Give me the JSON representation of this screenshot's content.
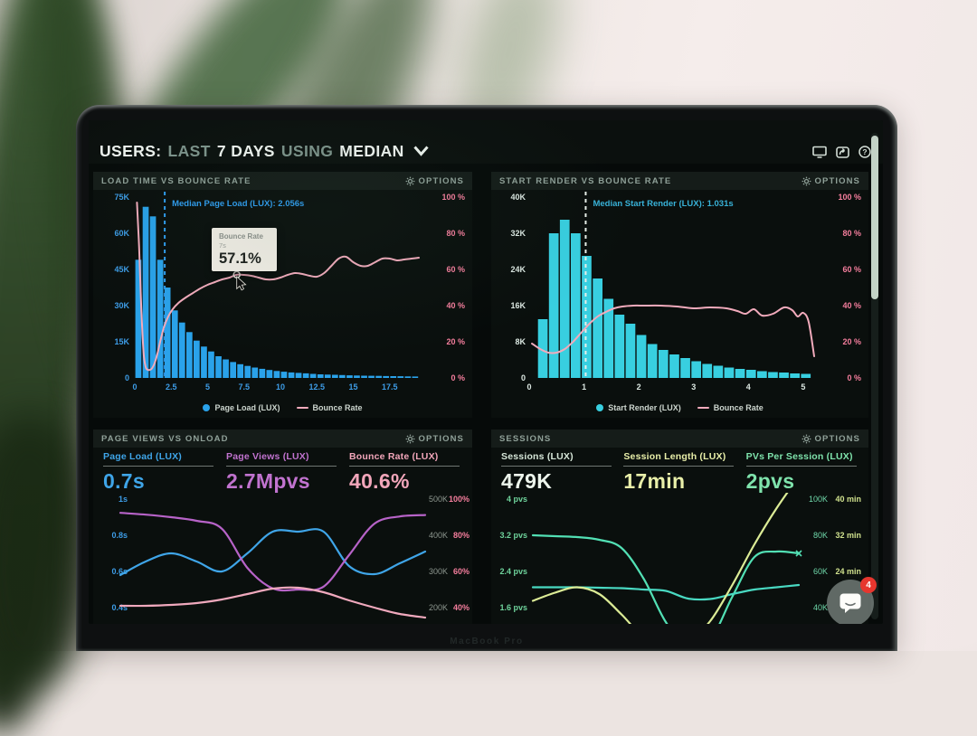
{
  "header": {
    "segments": [
      {
        "text": "USERS:",
        "emphasis": true
      },
      {
        "text": "LAST",
        "emphasis": false
      },
      {
        "text": "7 DAYS",
        "emphasis": true
      },
      {
        "text": "USING",
        "emphasis": false
      },
      {
        "text": "MEDIAN",
        "emphasis": true
      }
    ],
    "icons": [
      "display-icon",
      "share-icon",
      "help-icon"
    ]
  },
  "panels": {
    "p1": {
      "title": "LOAD TIME VS BOUNCE RATE",
      "options": "OPTIONS"
    },
    "p2": {
      "title": "START RENDER VS BOUNCE RATE",
      "options": "OPTIONS"
    },
    "p3": {
      "title": "PAGE VIEWS VS ONLOAD",
      "options": "OPTIONS"
    },
    "p4": {
      "title": "SESSIONS",
      "options": "OPTIONS"
    }
  },
  "tooltip": {
    "title": "Bounce Rate",
    "subtitle": "7s",
    "value": "57.1%"
  },
  "chat_widget": {
    "badge": "4"
  },
  "laptop_label": "MacBook Pro",
  "colors": {
    "screen_bg": "#060a09",
    "panel_header_bg": "#151c19",
    "blue": "#2aa2ea",
    "cyan": "#38cfe0",
    "pink_line": "#f2abbc",
    "pink_axis": "#f57e9d",
    "purple": "#b763c8",
    "teal": "#52e0b4",
    "yellow_green": "#dcec96",
    "mint": "#7fe3ac",
    "badge_red": "#e6362e",
    "scroll_thumb": "#c3d2c6"
  },
  "chart_data": [
    {
      "id": "c1",
      "type": "bar+line",
      "title": "LOAD TIME VS BOUNCE RATE",
      "x": {
        "unit": "seconds",
        "ticks": [
          0,
          2.5,
          5,
          7.5,
          10,
          12.5,
          15,
          17.5
        ],
        "labels": [
          "0",
          "2.5",
          "5",
          "7.5",
          "10",
          "12.5",
          "15",
          "17.5"
        ],
        "max": 19.75,
        "label_color": "#3d9ce6"
      },
      "y_left": {
        "label_color": "#3d9ce6",
        "ticks": [
          "75K",
          "60K",
          "45K",
          "30K",
          "15K",
          "0"
        ],
        "max": 75000
      },
      "y_right": {
        "label_color": "#f57e9d",
        "ticks": [
          "100 %",
          "80 %",
          "60 %",
          "40 %",
          "20 %",
          "0 %"
        ],
        "max": 100
      },
      "bars": {
        "name": "Page Load (LUX)",
        "color": "#2aa2ea",
        "bucket_start": 0,
        "bucket_width": 0.5,
        "values_thousands": [
          49,
          71,
          67,
          49,
          37.5,
          28,
          23,
          19,
          15.5,
          13,
          11,
          9,
          7.7,
          6.6,
          5.7,
          5,
          4.3,
          3.8,
          3.3,
          2.9,
          2.6,
          2.3,
          2.1,
          1.9,
          1.7,
          1.5,
          1.4,
          1.3,
          1.2,
          1.1,
          1,
          0.95,
          0.9,
          0.85,
          0.8,
          0.75,
          0.7,
          0.65,
          0.6
        ]
      },
      "line": {
        "name": "Bounce Rate",
        "color": "#f2abbc",
        "points_pct": [
          [
            0.15,
            97
          ],
          [
            0.3,
            72
          ],
          [
            0.45,
            38
          ],
          [
            0.6,
            14
          ],
          [
            0.75,
            6
          ],
          [
            0.9,
            4.5
          ],
          [
            1.05,
            4.5
          ],
          [
            1.2,
            5.5
          ],
          [
            1.4,
            9
          ],
          [
            1.6,
            15
          ],
          [
            1.8,
            22
          ],
          [
            2,
            28
          ],
          [
            2.3,
            34
          ],
          [
            2.6,
            38
          ],
          [
            3,
            41.5
          ],
          [
            3.5,
            44.5
          ],
          [
            4,
            47
          ],
          [
            4.5,
            49.5
          ],
          [
            5,
            51.5
          ],
          [
            5.5,
            53
          ],
          [
            6,
            54.5
          ],
          [
            6.5,
            55.5
          ],
          [
            7,
            57.1
          ],
          [
            7.5,
            57
          ],
          [
            8,
            56.5
          ],
          [
            8.5,
            55.5
          ],
          [
            9,
            54.5
          ],
          [
            9.5,
            54.5
          ],
          [
            10,
            55.5
          ],
          [
            10.5,
            57
          ],
          [
            11,
            58
          ],
          [
            11.5,
            57.5
          ],
          [
            12,
            56.5
          ],
          [
            12.5,
            56
          ],
          [
            13,
            58
          ],
          [
            13.5,
            62
          ],
          [
            14,
            66
          ],
          [
            14.5,
            67
          ],
          [
            15,
            64
          ],
          [
            15.5,
            62
          ],
          [
            16,
            62
          ],
          [
            16.5,
            64
          ],
          [
            17,
            66
          ],
          [
            17.5,
            66
          ],
          [
            18,
            65
          ],
          [
            18.5,
            65.5
          ],
          [
            19,
            66
          ],
          [
            19.5,
            66.5
          ]
        ]
      },
      "median": {
        "label": "Median Page Load (LUX): 2.056s",
        "value": 2.056,
        "line_color": "#2f9df0",
        "text_color": "#2f9df0"
      },
      "tooltip": {
        "title": "Bounce Rate",
        "subtitle": "7s",
        "value": "57.1%",
        "anchor_x": 7,
        "anchor_pct": 57.1
      },
      "legend": [
        {
          "label": "Page Load (LUX)",
          "swatch": "dot",
          "color": "#2aa2ea"
        },
        {
          "label": "Bounce Rate",
          "swatch": "line",
          "color": "#f2abbc"
        }
      ]
    },
    {
      "id": "c2",
      "type": "bar+line",
      "title": "START RENDER VS BOUNCE RATE",
      "x": {
        "unit": "seconds",
        "ticks": [
          0,
          1,
          2,
          3,
          4,
          5
        ],
        "labels": [
          "0",
          "1",
          "2",
          "3",
          "4",
          "5"
        ],
        "max": 5.25,
        "label_color": "#dce8e2"
      },
      "y_left": {
        "label_color": "#dce8e2",
        "ticks": [
          "40K",
          "32K",
          "24K",
          "16K",
          "8K",
          "0"
        ],
        "max": 40000
      },
      "y_right": {
        "label_color": "#f57e9d",
        "ticks": [
          "100 %",
          "80 %",
          "60 %",
          "40 %",
          "20 %",
          "0 %"
        ],
        "max": 100
      },
      "bars": {
        "name": "Start Render (LUX)",
        "color": "#38cfe0",
        "bucket_start": 0.15,
        "bucket_width": 0.2,
        "values_thousands": [
          13,
          32,
          35,
          32,
          27,
          22,
          17.5,
          14,
          12,
          9.5,
          7.5,
          6.2,
          5.2,
          4.4,
          3.7,
          3.1,
          2.7,
          2.3,
          2,
          1.8,
          1.5,
          1.3,
          1.2,
          1,
          0.9
        ]
      },
      "line": {
        "name": "Bounce Rate",
        "color": "#f2abbc",
        "points_pct": [
          [
            0.05,
            19
          ],
          [
            0.2,
            16
          ],
          [
            0.35,
            14
          ],
          [
            0.5,
            14
          ],
          [
            0.65,
            16
          ],
          [
            0.8,
            20
          ],
          [
            0.95,
            25
          ],
          [
            1.1,
            30
          ],
          [
            1.25,
            34
          ],
          [
            1.4,
            36.5
          ],
          [
            1.55,
            38.5
          ],
          [
            1.7,
            39.5
          ],
          [
            1.9,
            40
          ],
          [
            2.1,
            40
          ],
          [
            2.4,
            40
          ],
          [
            2.7,
            39.5
          ],
          [
            3,
            38.5
          ],
          [
            3.3,
            39
          ],
          [
            3.6,
            38.5
          ],
          [
            3.8,
            37
          ],
          [
            3.95,
            35.5
          ],
          [
            4.1,
            38
          ],
          [
            4.25,
            34.5
          ],
          [
            4.45,
            35.5
          ],
          [
            4.65,
            39
          ],
          [
            4.8,
            37.5
          ],
          [
            4.9,
            34
          ],
          [
            5,
            36
          ],
          [
            5.1,
            31
          ],
          [
            5.2,
            12
          ]
        ]
      },
      "median": {
        "label": "Median Start Render (LUX): 1.031s",
        "value": 1.031,
        "line_color": "#e8efe9",
        "text_color": "#38b2d8"
      },
      "legend": [
        {
          "label": "Start Render (LUX)",
          "swatch": "dot",
          "color": "#38cfe0"
        },
        {
          "label": "Bounce Rate",
          "swatch": "line",
          "color": "#f2abbc"
        }
      ]
    },
    {
      "id": "c3",
      "type": "line",
      "title": "PAGE VIEWS VS ONLOAD",
      "metrics": [
        {
          "label": "Page Load (LUX)",
          "value": "0.7s",
          "color": "#3fa5e8"
        },
        {
          "label": "Page Views (LUX)",
          "value": "2.7Mpvs",
          "color": "#c173cf"
        },
        {
          "label": "Bounce Rate (LUX)",
          "value": "40.6%",
          "color": "#f2a6ba"
        }
      ],
      "axes": {
        "seconds": {
          "top": 1.0,
          "step": 0.2
        },
        "views": {
          "top": 500,
          "step": 100
        },
        "pct": {
          "top": 100,
          "step": 20
        }
      },
      "y_left": {
        "label_color": "#3d9ce6",
        "ticks": [
          "1s",
          "0.8s",
          "0.6s",
          "0.4s"
        ]
      },
      "y_right_col1": {
        "label_color": "#8d978f",
        "ticks": [
          "500K",
          "400K",
          "300K",
          "200K"
        ]
      },
      "y_right_col2": {
        "label_color": "#f57e9d",
        "ticks": [
          "100%",
          "80%",
          "60%",
          "40%"
        ]
      },
      "series": [
        {
          "name": "Page Load",
          "axis": "seconds",
          "color": "#3fa5e8",
          "values": [
            0.58,
            0.655,
            0.7,
            0.655,
            0.6,
            0.7,
            0.82,
            0.82,
            0.82,
            0.63,
            0.585,
            0.645,
            0.71
          ]
        },
        {
          "name": "Page Views",
          "axis": "views",
          "color": "#b763c8",
          "values": [
            462,
            457,
            450,
            440,
            418,
            310,
            253,
            250,
            258,
            345,
            432,
            452,
            456
          ]
        },
        {
          "name": "Bounce Rate",
          "axis": "pct",
          "color": "#f0a9bd",
          "values": [
            41,
            41,
            41.5,
            42.5,
            44.5,
            47.5,
            50.5,
            51,
            48.5,
            44,
            40,
            36.5,
            34.5
          ]
        }
      ]
    },
    {
      "id": "c4",
      "type": "line",
      "title": "SESSIONS",
      "metrics": [
        {
          "label": "Sessions (LUX)",
          "value": "479K",
          "color": "#d6e6d8",
          "value_color": "#edf5ec"
        },
        {
          "label": "Session Length (LUX)",
          "value": "17min",
          "color": "#e9efa9"
        },
        {
          "label": "PVs Per Session (LUX)",
          "value": "2pvs",
          "color": "#7fe3ac"
        }
      ],
      "axes": {
        "pvs": {
          "top": 4,
          "step": 0.8
        },
        "sessions": {
          "top": 100,
          "step": 20
        },
        "minutes": {
          "top": 40,
          "step": 8
        }
      },
      "y_left": {
        "label_color": "#6fd49c",
        "ticks": [
          "4 pvs",
          "3.2 pvs",
          "2.4 pvs",
          "1.6 pvs"
        ]
      },
      "y_right_col1": {
        "label_color": "#6fd8aa",
        "ticks": [
          "100K",
          "80K",
          "60K",
          "40K"
        ]
      },
      "y_right_col2": {
        "label_color": "#cfe08d",
        "ticks": [
          "40 min",
          "32 min",
          "24 min"
        ]
      },
      "series": [
        {
          "name": "Sessions",
          "axis": "sessions",
          "color": "#52e0b4",
          "end_marker": true,
          "values": [
            80,
            79.5,
            79,
            77.5,
            73,
            56,
            32,
            18,
            22,
            46,
            68,
            71,
            70
          ]
        },
        {
          "name": "PVs Per Session",
          "axis": "pvs",
          "color": "#49d9c2",
          "values": [
            2.05,
            2.05,
            2.05,
            2.04,
            2.03,
            2,
            1.97,
            1.8,
            1.79,
            1.9,
            2,
            2.05,
            2.1
          ]
        },
        {
          "name": "Session Length",
          "axis": "minutes",
          "color": "#dcec96",
          "values": [
            17.5,
            19.3,
            20.5,
            19,
            14.5,
            9.5,
            8,
            8.5,
            13,
            21,
            30,
            38,
            45
          ]
        }
      ]
    }
  ]
}
